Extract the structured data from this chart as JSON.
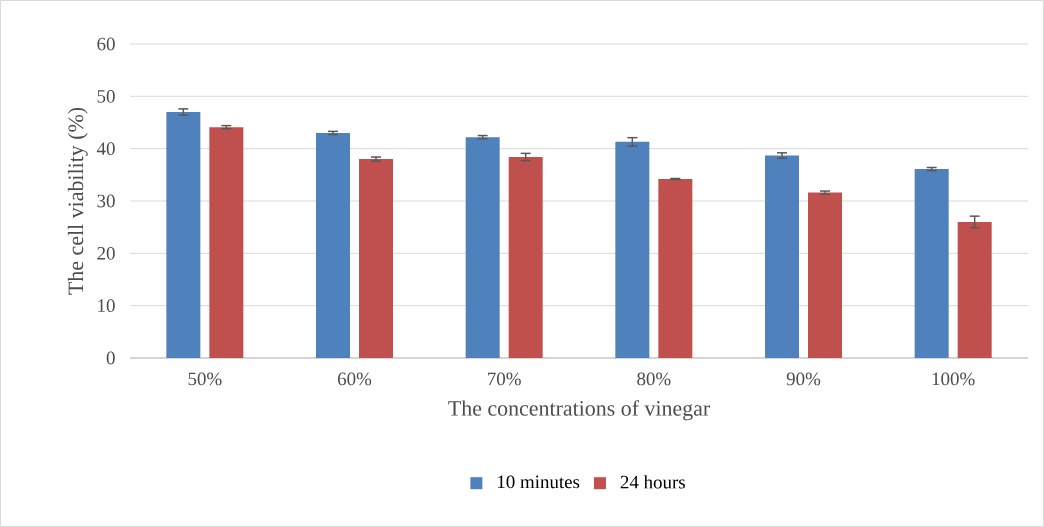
{
  "chart_data": {
    "type": "bar",
    "xlabel": "The concentrations of vinegar",
    "ylabel": "The cell viability (%)",
    "categories": [
      "50%",
      "60%",
      "70%",
      "80%",
      "90%",
      "100%"
    ],
    "series": [
      {
        "name": "10 minutes",
        "color": "#4f81bd",
        "values": [
          47.0,
          43.0,
          42.2,
          41.3,
          38.7,
          36.1
        ],
        "errors": [
          0.6,
          0.3,
          0.3,
          0.8,
          0.5,
          0.3
        ]
      },
      {
        "name": "24 hours",
        "color": "#c0504d",
        "values": [
          44.1,
          38.0,
          38.4,
          34.2,
          31.6,
          26.0
        ],
        "errors": [
          0.3,
          0.4,
          0.7,
          0.1,
          0.3,
          1.1
        ]
      }
    ],
    "ylim": [
      0,
      60
    ],
    "yticks": [
      0,
      10,
      20,
      30,
      40,
      50,
      60
    ],
    "grid": "y",
    "legend": "bottom"
  }
}
